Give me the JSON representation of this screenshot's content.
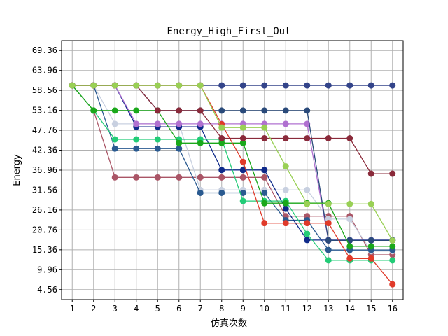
{
  "chart_data": {
    "type": "line",
    "title": "Energy_High_First_Out",
    "xlabel": "仿真次数",
    "ylabel": "Energy",
    "x": [
      1,
      2,
      3,
      4,
      5,
      6,
      7,
      8,
      9,
      10,
      11,
      12,
      13,
      14,
      15,
      16
    ],
    "xlim": [
      0.5,
      16.5
    ],
    "ylim": [
      1.86,
      72.06
    ],
    "yticks": [
      4.56,
      9.96,
      15.36,
      20.76,
      26.16,
      31.56,
      36.96,
      42.36,
      47.76,
      53.16,
      58.56,
      63.96,
      69.36
    ],
    "ytick_labels": [
      "4.56",
      "9.96",
      "15.36",
      "20.76",
      "26.16",
      "31.56",
      "36.96",
      "42.36",
      "47.76",
      "53.16",
      "58.56",
      "63.96",
      "69.36"
    ],
    "grid": true,
    "series": [
      {
        "color": "#aa5566",
        "values": [
          59.9,
          53.1,
          35.0,
          35.0,
          35.0,
          35.0,
          35.0,
          35.0,
          35.0,
          35.0,
          24.5,
          24.5,
          24.5,
          24.5,
          14.0,
          14.0
        ]
      },
      {
        "color": "#c8d0e0",
        "values": [
          59.9,
          59.9,
          49.5,
          49.5,
          49.5,
          49.5,
          31.6,
          31.6,
          31.6,
          31.6,
          31.6,
          31.6,
          23.7,
          23.7,
          15.0,
          15.0
        ]
      },
      {
        "color": "#2a5a90",
        "values": [
          59.9,
          59.9,
          42.8,
          42.8,
          42.8,
          42.8,
          30.8,
          30.8,
          30.8,
          30.8,
          23.4,
          23.4,
          15.3,
          15.3,
          15.3,
          15.3
        ]
      },
      {
        "color": "#33448a",
        "values": [
          59.9,
          59.9,
          59.9,
          59.9,
          59.9,
          59.9,
          59.9,
          59.9,
          59.9,
          59.9,
          59.9,
          59.9,
          59.9,
          59.9,
          59.9,
          59.9
        ]
      },
      {
        "color": "#0f2a8a",
        "values": [
          59.9,
          59.9,
          59.9,
          48.7,
          48.7,
          48.7,
          48.7,
          37.0,
          37.0,
          37.0,
          26.5,
          18.0,
          18.0,
          18.0,
          18.0,
          18.0
        ]
      },
      {
        "color": "#b070d0",
        "values": [
          59.9,
          59.9,
          59.9,
          49.5,
          49.5,
          49.5,
          49.5,
          49.5,
          49.5,
          49.5,
          49.5,
          49.5,
          17.9,
          17.9,
          17.9,
          17.9
        ]
      },
      {
        "color": "#2a4a7a",
        "values": [
          59.9,
          59.9,
          59.9,
          59.9,
          53.1,
          53.1,
          53.1,
          53.1,
          53.1,
          53.1,
          53.1,
          53.1,
          17.9,
          17.9,
          17.9,
          17.9
        ]
      },
      {
        "color": "#22cc77",
        "values": [
          59.9,
          53.1,
          45.3,
          45.3,
          45.3,
          45.3,
          45.3,
          45.3,
          28.6,
          28.6,
          28.6,
          19.7,
          12.5,
          12.5,
          12.5,
          12.5
        ]
      },
      {
        "color": "#1aa81a",
        "values": [
          59.9,
          53.1,
          53.1,
          53.1,
          53.1,
          44.3,
          44.3,
          44.3,
          44.3,
          28.0,
          28.0,
          28.0,
          28.0,
          16.3,
          16.3,
          16.3
        ]
      },
      {
        "color": "#e03a2a",
        "values": [
          59.9,
          59.9,
          59.9,
          59.9,
          59.9,
          59.9,
          59.9,
          49.4,
          39.2,
          22.6,
          22.6,
          22.6,
          22.6,
          13.0,
          13.0,
          6.0
        ]
      },
      {
        "color": "#8a2a3a",
        "values": [
          59.9,
          59.9,
          59.9,
          59.9,
          53.1,
          53.1,
          53.1,
          45.6,
          45.6,
          45.6,
          45.6,
          45.6,
          45.6,
          45.6,
          36.0,
          36.0
        ]
      },
      {
        "color": "#99d055",
        "values": [
          59.9,
          59.9,
          59.9,
          59.9,
          59.9,
          59.9,
          59.9,
          48.5,
          48.5,
          48.5,
          38.0,
          27.8,
          27.8,
          27.8,
          27.8,
          17.9
        ]
      }
    ]
  }
}
